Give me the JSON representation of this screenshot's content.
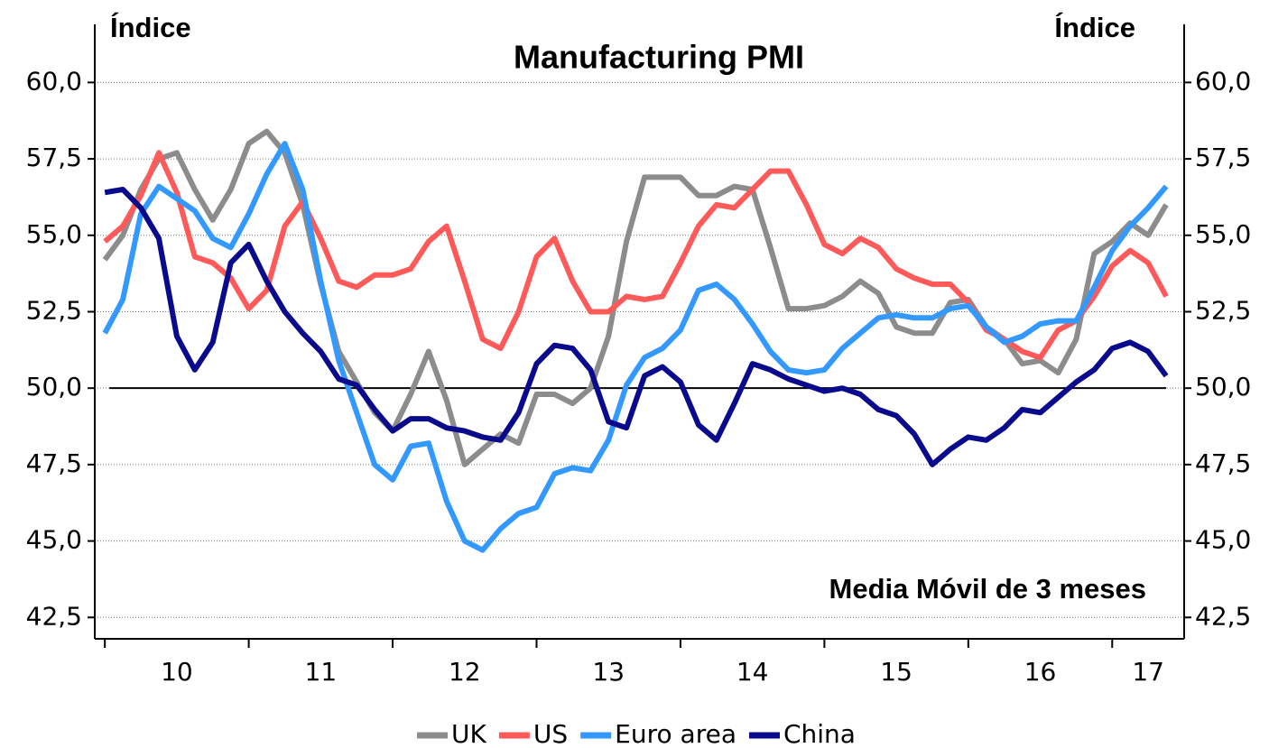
{
  "chart_data": {
    "type": "line",
    "title": "Manufacturing PMI",
    "y_label": "Índice",
    "y2_label": "Índice",
    "annotation": "Media Móvil de 3 meses",
    "x": [
      10,
      10.125,
      10.25,
      10.375,
      10.5,
      10.625,
      10.75,
      10.875,
      11,
      11.125,
      11.25,
      11.375,
      11.5,
      11.625,
      11.75,
      11.875,
      12,
      12.125,
      12.25,
      12.375,
      12.5,
      12.625,
      12.75,
      12.875,
      13,
      13.125,
      13.25,
      13.375,
      13.5,
      13.625,
      13.75,
      13.875,
      14,
      14.125,
      14.25,
      14.375,
      14.5,
      14.625,
      14.75,
      14.875,
      15,
      15.125,
      15.25,
      15.375,
      15.5,
      15.625,
      15.75,
      15.875,
      16,
      16.125,
      16.25,
      16.375,
      16.5,
      16.625,
      16.75,
      16.875,
      17,
      17.125,
      17.25,
      17.375
    ],
    "xlim": [
      9.93,
      17.5
    ],
    "xticks": [
      {
        "value": 10.5,
        "label": "10"
      },
      {
        "value": 11.5,
        "label": "11"
      },
      {
        "value": 12.5,
        "label": "12"
      },
      {
        "value": 13.5,
        "label": "13"
      },
      {
        "value": 14.5,
        "label": "14"
      },
      {
        "value": 15.5,
        "label": "15"
      },
      {
        "value": 16.5,
        "label": "16"
      },
      {
        "value": 17.25,
        "label": "17"
      }
    ],
    "xtick_marks": [
      10,
      11,
      12,
      13,
      14,
      15,
      16,
      17
    ],
    "ylim": [
      41.8,
      61.9
    ],
    "yticks": [
      {
        "value": 42.5,
        "label": "42,5"
      },
      {
        "value": 45,
        "label": "45,0"
      },
      {
        "value": 47.5,
        "label": "47,5"
      },
      {
        "value": 50,
        "label": "50,0"
      },
      {
        "value": 52.5,
        "label": "52,5"
      },
      {
        "value": 55,
        "label": "55,0"
      },
      {
        "value": 57.5,
        "label": "57,5"
      },
      {
        "value": 60,
        "label": "60,0"
      }
    ],
    "y2lim": [
      41.8,
      61.9
    ],
    "y2ticks": [
      {
        "value": 42.5,
        "label": "42,5"
      },
      {
        "value": 45,
        "label": "45,0"
      },
      {
        "value": 47.5,
        "label": "47,5"
      },
      {
        "value": 50,
        "label": "50,0"
      },
      {
        "value": 52.5,
        "label": "52,5"
      },
      {
        "value": 55,
        "label": "55,0"
      },
      {
        "value": 57.5,
        "label": "57,5"
      },
      {
        "value": 60,
        "label": "60,0"
      }
    ],
    "reference_line": 50,
    "grid": true,
    "legend": "bottom",
    "series": [
      {
        "name": "UK",
        "color": "#8c8c8c",
        "values": [
          54.2,
          55.0,
          56.5,
          57.5,
          57.7,
          56.5,
          55.5,
          56.5,
          58.0,
          58.4,
          57.7,
          56.0,
          53.4,
          51.2,
          50.2,
          49.2,
          48.6,
          49.8,
          51.2,
          49.6,
          47.5,
          48.0,
          48.5,
          48.2,
          49.8,
          49.8,
          49.5,
          50.0,
          51.7,
          54.8,
          56.9,
          56.9,
          56.9,
          56.3,
          56.3,
          56.6,
          56.5,
          54.6,
          52.6,
          52.6,
          52.7,
          53.0,
          53.5,
          53.1,
          52.0,
          51.8,
          51.8,
          52.8,
          52.9,
          52.0,
          51.6,
          50.8,
          50.9,
          50.5,
          51.6,
          54.4,
          54.8,
          55.4,
          55.0,
          56.0
        ]
      },
      {
        "name": "US",
        "color": "#ff5a5a",
        "values": [
          54.8,
          55.3,
          56.3,
          57.7,
          56.4,
          54.3,
          54.1,
          53.6,
          52.6,
          53.2,
          55.3,
          56.1,
          54.9,
          53.5,
          53.3,
          53.7,
          53.7,
          53.9,
          54.8,
          55.3,
          53.5,
          51.6,
          51.3,
          52.5,
          54.3,
          54.9,
          53.5,
          52.5,
          52.5,
          53.0,
          52.9,
          53.0,
          54.1,
          55.3,
          56.0,
          55.9,
          56.5,
          57.1,
          57.1,
          56.0,
          54.7,
          54.4,
          54.9,
          54.6,
          53.9,
          53.6,
          53.4,
          53.4,
          52.8,
          51.9,
          51.6,
          51.2,
          51.0,
          51.9,
          52.2,
          53.0,
          54.0,
          54.5,
          54.1,
          53.0
        ]
      },
      {
        "name": "Euro area",
        "color": "#3399ff",
        "values": [
          51.8,
          52.9,
          55.7,
          56.6,
          56.2,
          55.8,
          54.9,
          54.6,
          55.7,
          57.0,
          58.0,
          56.5,
          53.5,
          50.9,
          49.2,
          47.5,
          47.0,
          48.1,
          48.2,
          46.3,
          45.0,
          44.7,
          45.4,
          45.9,
          46.1,
          47.2,
          47.4,
          47.3,
          48.3,
          50.1,
          51.0,
          51.3,
          51.9,
          53.2,
          53.4,
          52.9,
          52.1,
          51.2,
          50.6,
          50.5,
          50.6,
          51.3,
          51.8,
          52.3,
          52.4,
          52.3,
          52.3,
          52.6,
          52.7,
          52.0,
          51.5,
          51.7,
          52.1,
          52.2,
          52.2,
          53.3,
          54.5,
          55.3,
          55.9,
          56.6
        ]
      },
      {
        "name": "China",
        "color": "#0a0a8c",
        "values": [
          56.4,
          56.5,
          55.9,
          54.9,
          51.7,
          50.6,
          51.5,
          54.1,
          54.7,
          53.5,
          52.5,
          51.8,
          51.2,
          50.3,
          50.1,
          49.3,
          48.6,
          49.0,
          49.0,
          48.7,
          48.6,
          48.4,
          48.3,
          49.2,
          50.8,
          51.4,
          51.3,
          50.6,
          48.9,
          48.7,
          50.4,
          50.7,
          50.2,
          48.8,
          48.3,
          49.5,
          50.8,
          50.6,
          50.3,
          50.1,
          49.9,
          50.0,
          49.8,
          49.3,
          49.1,
          48.5,
          47.5,
          48.0,
          48.4,
          48.3,
          48.7,
          49.3,
          49.2,
          49.7,
          50.2,
          50.6,
          51.3,
          51.5,
          51.2,
          50.4
        ]
      }
    ]
  }
}
